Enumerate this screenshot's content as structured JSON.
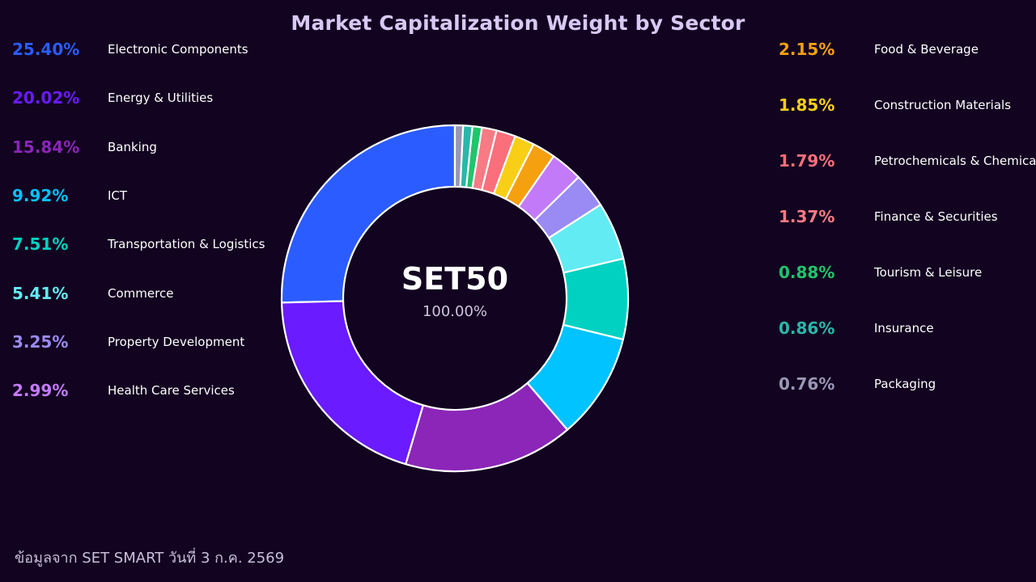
{
  "chart_data": {
    "type": "pie",
    "title": "Market Capitalization Weight by Sector",
    "center_label": "SET50",
    "center_value": "100.00%",
    "categories": [
      "Electronic Components",
      "Energy & Utilities",
      "Banking",
      "ICT",
      "Transportation & Logistics",
      "Commerce",
      "Property Development",
      "Health Care Services",
      "Food & Beverage",
      "Construction Materials",
      "Petrochemicals & Chemicals",
      "Finance & Securities",
      "Tourism & Leisure",
      "Insurance",
      "Packaging"
    ],
    "values": [
      25.4,
      20.02,
      15.84,
      9.92,
      7.51,
      5.41,
      3.25,
      2.99,
      2.15,
      1.85,
      1.79,
      1.37,
      0.88,
      0.86,
      0.76
    ],
    "labels": [
      "25.40%",
      "20.02%",
      "15.84%",
      "9.92%",
      "7.51%",
      "5.41%",
      "3.25%",
      "2.99%",
      "2.15%",
      "1.85%",
      "1.79%",
      "1.37%",
      "0.88%",
      "0.86%",
      "0.76%"
    ],
    "colors": [
      "#2b5cff",
      "#6a1bff",
      "#8b26b8",
      "#00c3ff",
      "#00d1c1",
      "#62ebf3",
      "#9a8af3",
      "#c37af8",
      "#f5a00f",
      "#f8cf16",
      "#fa6f7b",
      "#f77a85",
      "#1fc56a",
      "#2ab7aa",
      "#9a97b6"
    ],
    "legend_placement": "left and right",
    "direction": "counterclockwise from top"
  },
  "footnote": "ข้อมูลจาก SET SMART วันที่ 3 ก.ค. 2569"
}
